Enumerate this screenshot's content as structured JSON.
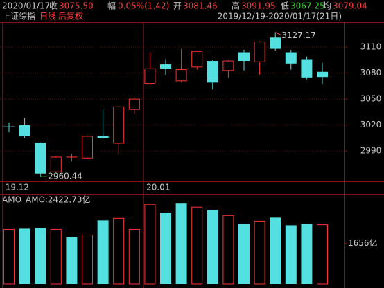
{
  "header": {
    "date": "2020/01/17",
    "close_label": "收",
    "close": "3075.50",
    "change_label": "幅",
    "change": "0.05%(1.42)",
    "open_label": "开",
    "open": "3081.46",
    "high_label": "高",
    "high": "3091.95",
    "low_label": "低",
    "low": "3067.25",
    "avg_label": "均",
    "avg": "3079.04",
    "index_name": "上证综指",
    "period": "日线",
    "adjust": "后复权",
    "range": "2019/12/19-2020/01/17(21日)"
  },
  "chart_data": [
    {
      "type": "candlestick",
      "categories": [
        "19.12",
        null,
        null,
        null,
        null,
        null,
        null,
        null,
        null,
        "20.01",
        null,
        null,
        null,
        null,
        null,
        null,
        null,
        null,
        null,
        null,
        null
      ],
      "open": [
        3018,
        3020,
        2999.5,
        2966,
        2983,
        2982,
        3007,
        2999,
        3038,
        3068,
        3090,
        3071,
        3087,
        3094,
        3083,
        3104,
        3093,
        3121,
        3104,
        3096,
        3081.46
      ],
      "high": [
        3023,
        3028,
        3000,
        2984,
        2987,
        3008,
        3038,
        3042,
        3052,
        3104,
        3096,
        3108,
        3106,
        3095,
        3095,
        3107,
        3117,
        3127.17,
        3107,
        3099,
        3091.95
      ],
      "low": [
        3012,
        3005,
        2960.44,
        2965,
        2978,
        2981,
        3004,
        2987,
        3033,
        3066,
        3078,
        3069,
        3084,
        3061,
        3075,
        3083,
        3078,
        3106,
        3084,
        3073,
        3067.25
      ],
      "close": [
        3017,
        3007,
        2964,
        2983,
        2984,
        3007,
        3005,
        3041,
        3050,
        3085,
        3085,
        3084,
        3105,
        3069,
        3094,
        3094,
        3116,
        3108,
        3091,
        3075,
        3075.5
      ],
      "up_color": "#ff3232",
      "down_color": "#54e0e0",
      "ylim": [
        2955,
        3138
      ],
      "yticks": [
        2990,
        3020,
        3050,
        3080,
        3110
      ],
      "high_marker": 3127.17,
      "low_marker": 2960.44,
      "high_marker_color": "#ff5050",
      "low_marker_color": "#3cc83c"
    },
    {
      "type": "bar",
      "title": "AMO",
      "subtitle": "AMO:2422.73亿",
      "values": [
        2229,
        2257,
        2286,
        2229,
        1914,
        2000,
        2600,
        2686,
        2229,
        3257,
        2914,
        3314,
        3143,
        3029,
        2800,
        2457,
        2571,
        2714,
        2400,
        2457,
        2422.73
      ],
      "colors": [
        "#ff3232",
        "#54e0e0",
        "#54e0e0",
        "#ff3232",
        "#54e0e0",
        "#ff3232",
        "#54e0e0",
        "#ff3232",
        "#ff3232",
        "#ff3232",
        "#54e0e0",
        "#54e0e0",
        "#ff3232",
        "#54e0e0",
        "#ff3232",
        "#54e0e0",
        "#ff3232",
        "#54e0e0",
        "#54e0e0",
        "#54e0e0",
        "#ff3232"
      ],
      "hollow_color": "#ff3232",
      "ylim": [
        0,
        3660
      ],
      "yticks": [
        {
          "value": 1656,
          "label": "1656亿"
        }
      ]
    }
  ]
}
